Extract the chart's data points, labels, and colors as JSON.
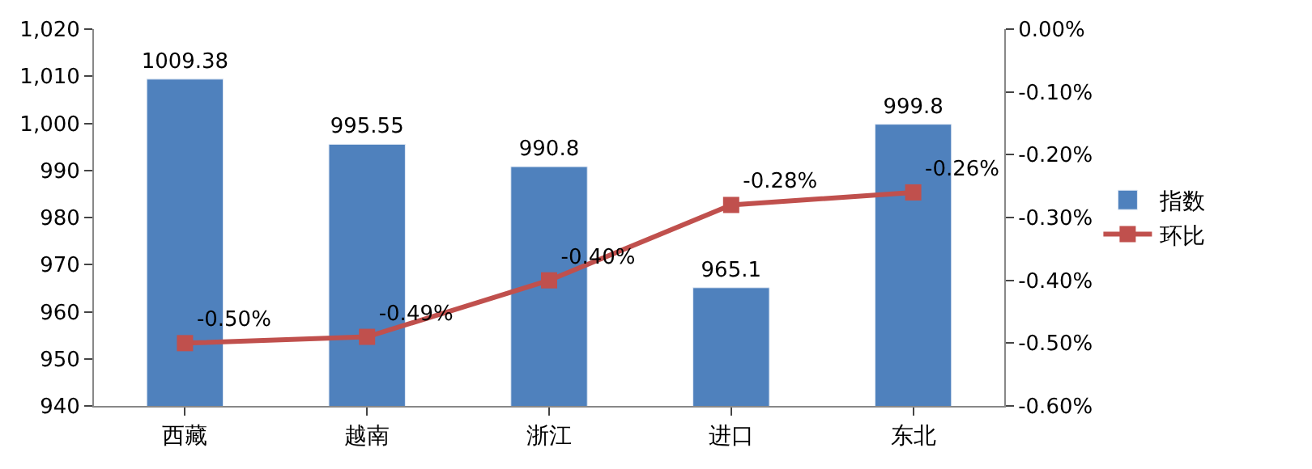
{
  "chart_data": {
    "type": "bar",
    "categories": [
      "西藏",
      "越南",
      "浙江",
      "进口",
      "东北"
    ],
    "series": [
      {
        "name": "指数",
        "color": "#4f81bd",
        "values": [
          1009.38,
          995.55,
          990.8,
          965.1,
          999.8
        ],
        "value_labels": [
          "1009.38",
          "995.55",
          "990.8",
          "965.1",
          "999.8"
        ]
      },
      {
        "name": "环比",
        "type": "line",
        "axis": "y2",
        "color": "#c0504d",
        "marker": "square",
        "values": [
          -0.5,
          -0.49,
          -0.4,
          -0.28,
          -0.26
        ],
        "value_labels": [
          "-0.50%",
          "-0.49%",
          "-0.40%",
          "-0.28%",
          "-0.26%"
        ]
      }
    ],
    "ylim": [
      940,
      1020
    ],
    "yticks": [
      940,
      950,
      960,
      970,
      980,
      990,
      {
        "value": 1000,
        "label": "1,000"
      },
      {
        "value": 1010,
        "label": "1,010"
      },
      {
        "value": 1020,
        "label": "1,020"
      }
    ],
    "y2lim": [
      -0.6,
      0
    ],
    "y2ticks": [
      {
        "value": 0,
        "label": "0.00%"
      },
      {
        "value": -0.1,
        "label": "-0.10%"
      },
      {
        "value": -0.2,
        "label": "-0.20%"
      },
      {
        "value": -0.3,
        "label": "-0.30%"
      },
      {
        "value": -0.4,
        "label": "-0.40%"
      },
      {
        "value": -0.5,
        "label": "-0.50%"
      },
      {
        "value": -0.6,
        "label": "-0.60%"
      }
    ],
    "legend": "right"
  }
}
